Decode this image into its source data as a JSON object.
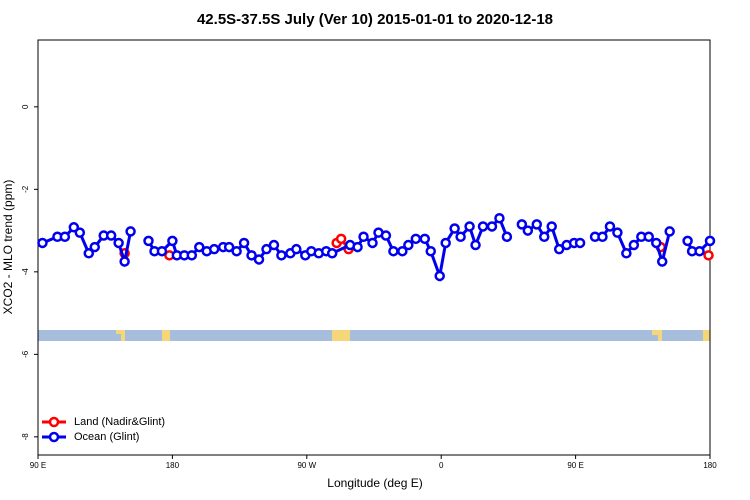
{
  "chart_data": {
    "type": "line",
    "title": "42.5S-37.5S July (Ver 10)   2015-01-01 to 2020-12-18",
    "xlabel": "Longitude (deg E)",
    "ylabel": "XCO2 - MLO trend (ppm)",
    "xlim": [
      90,
      540
    ],
    "ylim": [
      -8.44,
      1.62
    ],
    "xticks": [
      {
        "value": 90,
        "label": "90 E"
      },
      {
        "value": 180,
        "label": "180"
      },
      {
        "value": 270,
        "label": "90 W"
      },
      {
        "value": 360,
        "label": "0"
      },
      {
        "value": 450,
        "label": "90 E"
      },
      {
        "value": 540,
        "label": "180"
      }
    ],
    "yticks": [
      0,
      -2,
      -4,
      -6,
      -8
    ],
    "legend": "bottomleft",
    "series": [
      {
        "name": "Land (Nadir&Glint)",
        "color": "#ff0000",
        "x": [
          148,
          null,
          178,
          null,
          290,
          293,
          298,
          null,
          507,
          null,
          539
        ],
        "values": [
          -3.55,
          null,
          -3.6,
          null,
          -3.3,
          -3.2,
          -3.45,
          null,
          -3.4,
          null,
          -3.6
        ]
      },
      {
        "name": "Ocean (Glint)",
        "color": "#0000ee",
        "x": [
          93,
          103,
          108,
          114,
          118,
          124,
          128,
          134,
          139,
          144,
          148,
          152,
          null,
          164,
          168,
          173,
          180,
          183,
          188,
          193,
          198,
          203,
          208,
          214,
          218,
          223,
          228,
          233,
          238,
          243,
          248,
          253,
          259,
          263,
          269,
          273,
          278,
          283,
          287,
          299,
          304,
          308,
          314,
          318,
          323,
          328,
          334,
          338,
          343,
          349,
          353,
          359,
          363,
          369,
          373,
          379,
          383,
          388,
          394,
          399,
          404,
          null,
          414,
          418,
          424,
          429,
          434,
          439,
          444,
          449,
          453,
          null,
          463,
          468,
          473,
          478,
          484,
          489,
          494,
          499,
          504,
          508,
          513,
          null,
          525,
          528,
          533,
          540
        ],
        "values": [
          -3.3,
          -3.15,
          -3.15,
          -2.92,
          -3.05,
          -3.55,
          -3.4,
          -3.12,
          -3.12,
          -3.3,
          -3.75,
          -3.02,
          null,
          -3.25,
          -3.5,
          -3.5,
          -3.25,
          -3.6,
          -3.6,
          -3.6,
          -3.4,
          -3.5,
          -3.45,
          -3.4,
          -3.4,
          -3.5,
          -3.3,
          -3.6,
          -3.7,
          -3.45,
          -3.35,
          -3.6,
          -3.55,
          -3.45,
          -3.6,
          -3.5,
          -3.55,
          -3.5,
          -3.55,
          -3.35,
          -3.4,
          -3.15,
          -3.3,
          -3.05,
          -3.12,
          -3.5,
          -3.5,
          -3.35,
          -3.2,
          -3.2,
          -3.5,
          -4.1,
          -3.3,
          -2.95,
          -3.15,
          -2.9,
          -3.35,
          -2.9,
          -2.9,
          -2.7,
          -3.15,
          null,
          -2.85,
          -3.0,
          -2.85,
          -3.15,
          -2.9,
          -3.45,
          -3.35,
          -3.3,
          -3.3,
          null,
          -3.15,
          -3.15,
          -2.9,
          -3.05,
          -3.55,
          -3.35,
          -3.15,
          -3.15,
          -3.3,
          -3.75,
          -3.02,
          null,
          -3.25,
          -3.5,
          -3.5,
          -3.25
        ]
      }
    ]
  }
}
